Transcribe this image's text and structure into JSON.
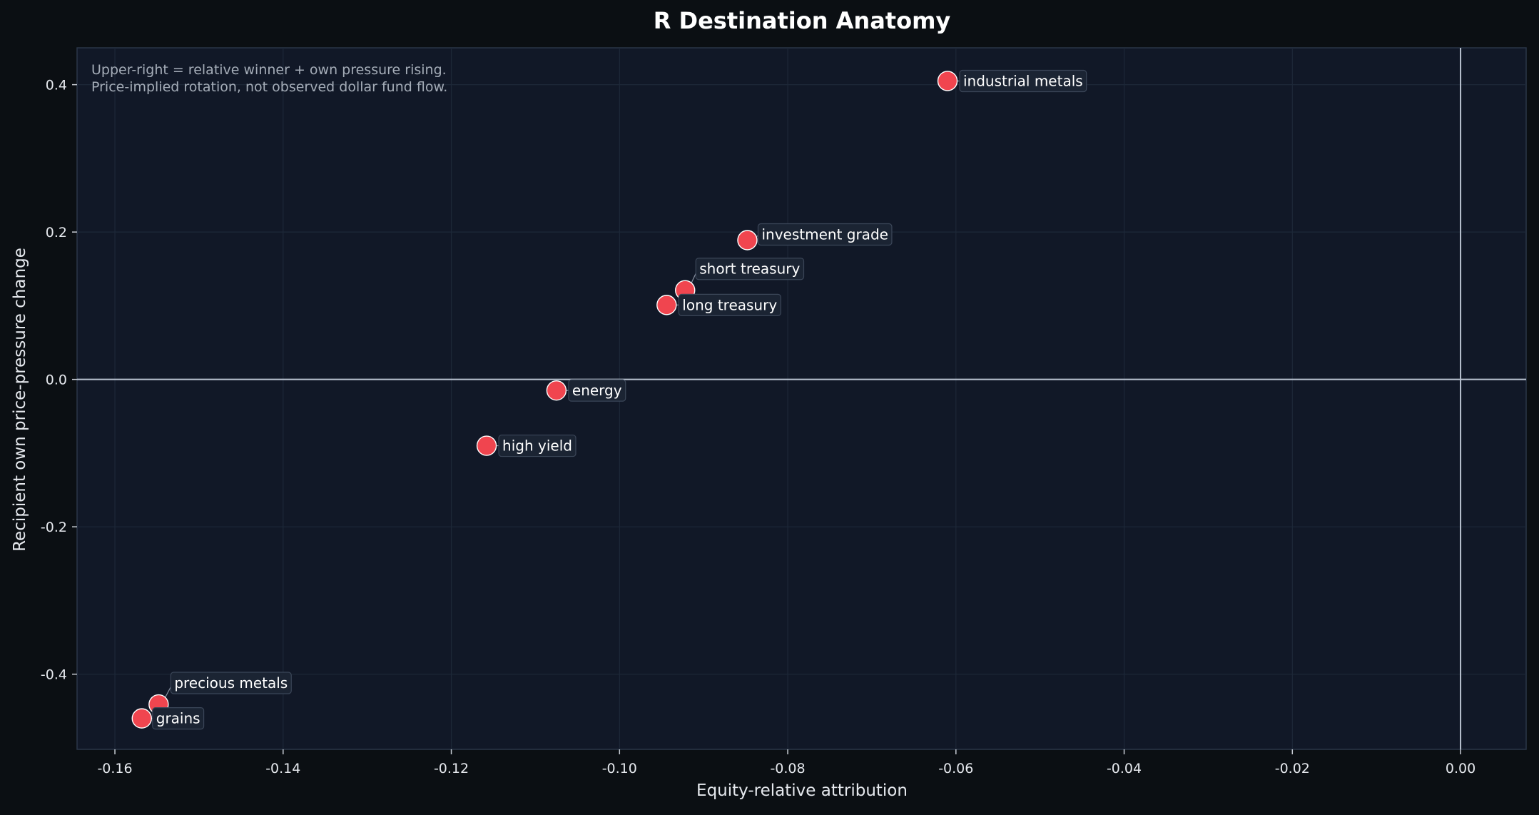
{
  "chart_data": {
    "type": "scatter",
    "title": "R Destination Anatomy",
    "xlabel": "Equity-relative attribution",
    "ylabel": "Recipient own price-pressure change",
    "xlim": [
      -0.1645,
      0.0078
    ],
    "ylim": [
      -0.502,
      0.45
    ],
    "x_ticks": [
      -0.16,
      -0.14,
      -0.12,
      -0.1,
      -0.08,
      -0.06,
      -0.04,
      -0.02,
      0.0
    ],
    "x_tick_labels": [
      "-0.16",
      "-0.14",
      "-0.12",
      "-0.10",
      "-0.08",
      "-0.06",
      "-0.04",
      "-0.02",
      "0.00"
    ],
    "y_ticks": [
      0.4,
      0.2,
      0.0,
      -0.2,
      -0.4
    ],
    "y_tick_labels": [
      "0.4",
      "0.2",
      "0.0",
      "-0.2",
      "-0.4"
    ],
    "grid": true,
    "reference_lines": {
      "x": 0.0,
      "y": 0.0
    },
    "annotations": [
      "Upper-right = relative winner + own pressure rising.",
      "Price-implied rotation, not observed dollar fund flow."
    ],
    "marker_color": "#f0454f",
    "points": [
      {
        "label": "industrial metals",
        "x": -0.061,
        "y": 0.405
      },
      {
        "label": "investment grade",
        "x": -0.0848,
        "y": 0.189
      },
      {
        "label": "short treasury",
        "x": -0.0922,
        "y": 0.121
      },
      {
        "label": "long treasury",
        "x": -0.0944,
        "y": 0.101
      },
      {
        "label": "energy",
        "x": -0.1075,
        "y": -0.015
      },
      {
        "label": "high yield",
        "x": -0.1158,
        "y": -0.09
      },
      {
        "label": "precious metals",
        "x": -0.1548,
        "y": -0.441
      },
      {
        "label": "grains",
        "x": -0.1568,
        "y": -0.46
      }
    ]
  }
}
